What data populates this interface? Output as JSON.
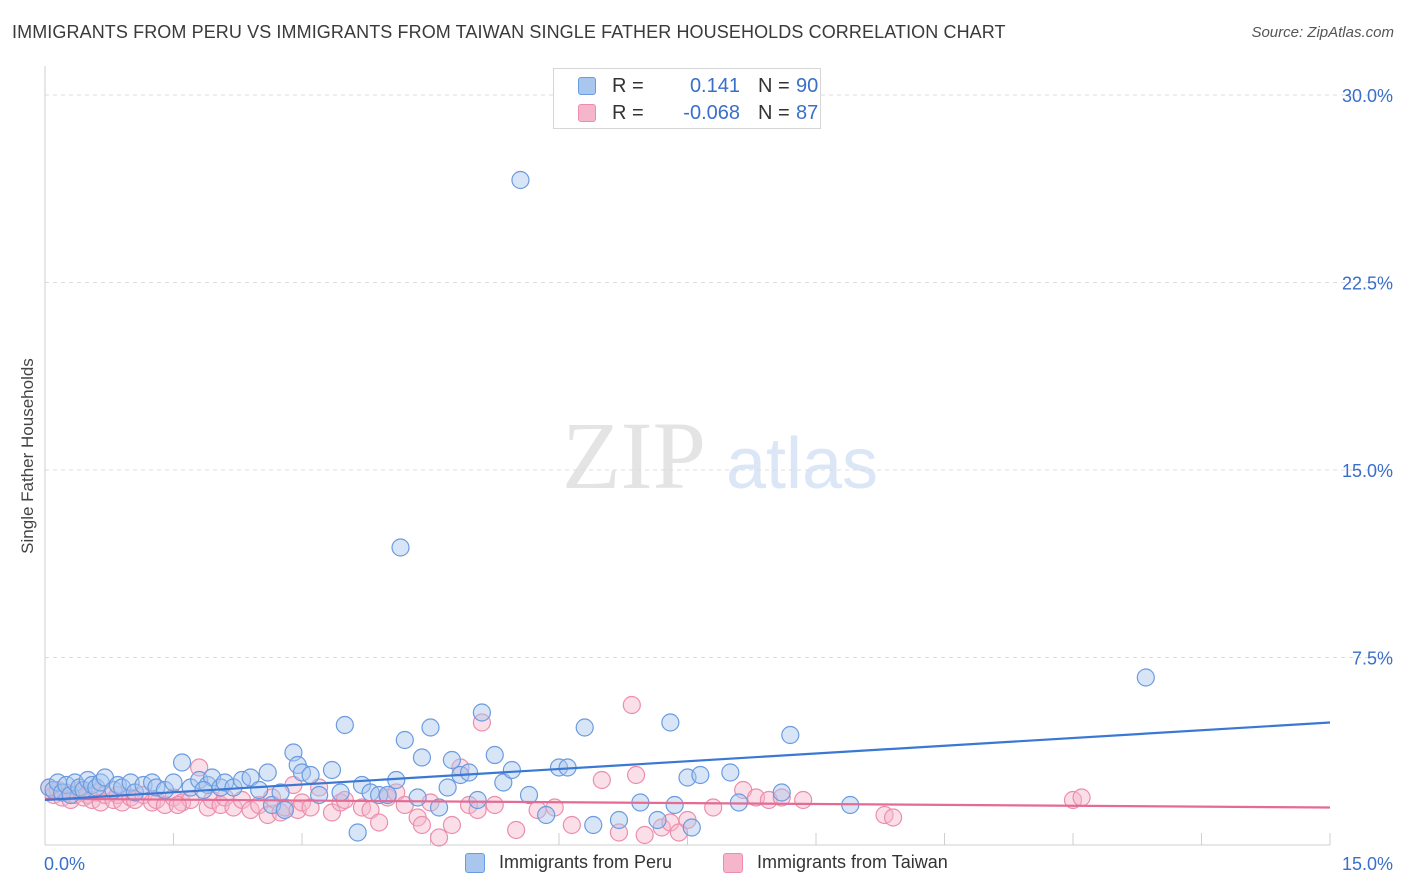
{
  "title": "IMMIGRANTS FROM PERU VS IMMIGRANTS FROM TAIWAN SINGLE FATHER HOUSEHOLDS CORRELATION CHART",
  "source": "Source: ZipAtlas.com",
  "watermark": {
    "zip": "ZIP",
    "atlas": "atlas"
  },
  "legend": {
    "peru": {
      "r_label": "R =",
      "r_value": "0.141",
      "n_label": "N =",
      "n_value": "90"
    },
    "taiwan": {
      "r_label": "R =",
      "r_value": "-0.068",
      "n_label": "N =",
      "n_value": "87"
    }
  },
  "colors": {
    "peru_fill": "#a9c6ee",
    "peru_stroke": "#6a9be0",
    "peru_line": "#3a78d4",
    "taiwan_fill": "#f5b6cb",
    "taiwan_stroke": "#ec8eab",
    "taiwan_line": "#e36b94",
    "grid": "#dcdcdc",
    "axis_label": "#3a6fc9"
  },
  "chart_data": {
    "type": "scatter",
    "title": "IMMIGRANTS FROM PERU VS IMMIGRANTS FROM TAIWAN SINGLE FATHER HOUSEHOLDS CORRELATION CHART",
    "xlabel": "",
    "ylabel": "Single Father Households",
    "xlim": [
      0,
      15
    ],
    "ylim": [
      0,
      31
    ],
    "x_tick_labels": [
      "0.0%",
      "15.0%"
    ],
    "y_ticks": [
      7.5,
      15.0,
      22.5,
      30.0
    ],
    "y_tick_labels": [
      "7.5%",
      "15.0%",
      "22.5%",
      "30.0%"
    ],
    "grid": "horizontal dashed",
    "legend_position": "top-center",
    "series": [
      {
        "name": "Immigrants from Peru",
        "trend": {
          "x": [
            0,
            15
          ],
          "y": [
            1.8,
            4.9
          ]
        },
        "points": [
          [
            0.05,
            2.3
          ],
          [
            0.1,
            2.2
          ],
          [
            0.15,
            2.5
          ],
          [
            0.2,
            2.1
          ],
          [
            0.25,
            2.4
          ],
          [
            0.3,
            2.0
          ],
          [
            0.35,
            2.5
          ],
          [
            0.4,
            2.3
          ],
          [
            0.45,
            2.2
          ],
          [
            0.5,
            2.6
          ],
          [
            0.55,
            2.4
          ],
          [
            0.6,
            2.3
          ],
          [
            0.65,
            2.5
          ],
          [
            0.7,
            2.7
          ],
          [
            0.8,
            2.2
          ],
          [
            0.85,
            2.4
          ],
          [
            0.9,
            2.3
          ],
          [
            1.0,
            2.5
          ],
          [
            1.05,
            2.1
          ],
          [
            1.15,
            2.4
          ],
          [
            1.25,
            2.5
          ],
          [
            1.3,
            2.3
          ],
          [
            1.4,
            2.2
          ],
          [
            1.5,
            2.5
          ],
          [
            1.6,
            3.3
          ],
          [
            1.7,
            2.3
          ],
          [
            1.8,
            2.6
          ],
          [
            1.9,
            2.4
          ],
          [
            1.95,
            2.7
          ],
          [
            2.05,
            2.3
          ],
          [
            2.1,
            2.5
          ],
          [
            2.2,
            2.3
          ],
          [
            2.3,
            2.6
          ],
          [
            2.4,
            2.7
          ],
          [
            2.5,
            2.2
          ],
          [
            2.6,
            2.9
          ],
          [
            2.65,
            1.6
          ],
          [
            2.75,
            2.1
          ],
          [
            2.8,
            1.4
          ],
          [
            2.9,
            3.7
          ],
          [
            2.95,
            3.2
          ],
          [
            3.0,
            2.9
          ],
          [
            3.1,
            2.8
          ],
          [
            3.2,
            2.0
          ],
          [
            3.35,
            3.0
          ],
          [
            3.45,
            2.1
          ],
          [
            3.5,
            4.8
          ],
          [
            3.7,
            2.4
          ],
          [
            3.8,
            2.1
          ],
          [
            3.9,
            2.0
          ],
          [
            4.0,
            2.0
          ],
          [
            4.1,
            2.6
          ],
          [
            4.15,
            11.9
          ],
          [
            4.2,
            4.2
          ],
          [
            4.35,
            1.9
          ],
          [
            4.4,
            3.5
          ],
          [
            4.5,
            4.7
          ],
          [
            4.6,
            1.5
          ],
          [
            4.7,
            2.3
          ],
          [
            4.75,
            3.4
          ],
          [
            4.85,
            2.8
          ],
          [
            4.95,
            2.9
          ],
          [
            5.05,
            1.8
          ],
          [
            5.1,
            5.3
          ],
          [
            5.25,
            3.6
          ],
          [
            5.35,
            2.5
          ],
          [
            5.45,
            3.0
          ],
          [
            5.55,
            26.6
          ],
          [
            5.65,
            2.0
          ],
          [
            5.85,
            1.2
          ],
          [
            6.0,
            3.1
          ],
          [
            6.1,
            3.1
          ],
          [
            6.3,
            4.7
          ],
          [
            6.4,
            0.8
          ],
          [
            6.7,
            1.0
          ],
          [
            6.95,
            1.7
          ],
          [
            7.15,
            1.0
          ],
          [
            7.3,
            4.9
          ],
          [
            7.35,
            1.6
          ],
          [
            7.5,
            2.7
          ],
          [
            7.55,
            0.7
          ],
          [
            7.65,
            2.8
          ],
          [
            8.0,
            2.9
          ],
          [
            8.1,
            1.7
          ],
          [
            8.6,
            2.1
          ],
          [
            8.7,
            4.4
          ],
          [
            9.4,
            1.6
          ],
          [
            12.85,
            6.7
          ],
          [
            3.65,
            0.5
          ],
          [
            1.85,
            2.2
          ]
        ]
      },
      {
        "name": "Immigrants from Taiwan",
        "trend": {
          "x": [
            0,
            15
          ],
          "y": [
            1.85,
            1.5
          ]
        },
        "points": [
          [
            0.05,
            2.3
          ],
          [
            0.1,
            2.0
          ],
          [
            0.15,
            2.2
          ],
          [
            0.2,
            1.9
          ],
          [
            0.25,
            2.1
          ],
          [
            0.3,
            1.8
          ],
          [
            0.35,
            2.0
          ],
          [
            0.4,
            2.2
          ],
          [
            0.45,
            1.9
          ],
          [
            0.5,
            2.0
          ],
          [
            0.55,
            1.8
          ],
          [
            0.6,
            2.1
          ],
          [
            0.65,
            1.7
          ],
          [
            0.7,
            2.0
          ],
          [
            0.8,
            1.8
          ],
          [
            0.85,
            2.0
          ],
          [
            0.9,
            1.7
          ],
          [
            1.0,
            1.9
          ],
          [
            1.05,
            1.8
          ],
          [
            1.15,
            2.0
          ],
          [
            1.25,
            1.7
          ],
          [
            1.3,
            1.8
          ],
          [
            1.4,
            1.6
          ],
          [
            1.5,
            1.9
          ],
          [
            1.6,
            1.7
          ],
          [
            1.7,
            1.8
          ],
          [
            1.8,
            3.1
          ],
          [
            1.9,
            1.5
          ],
          [
            1.95,
            1.8
          ],
          [
            2.05,
            1.6
          ],
          [
            2.1,
            1.9
          ],
          [
            2.2,
            1.5
          ],
          [
            2.3,
            1.8
          ],
          [
            2.4,
            1.4
          ],
          [
            2.5,
            1.6
          ],
          [
            2.6,
            1.2
          ],
          [
            2.65,
            1.9
          ],
          [
            2.75,
            1.3
          ],
          [
            2.8,
            1.5
          ],
          [
            2.9,
            2.4
          ],
          [
            2.95,
            1.4
          ],
          [
            3.0,
            1.7
          ],
          [
            3.1,
            1.5
          ],
          [
            3.2,
            2.3
          ],
          [
            3.35,
            1.3
          ],
          [
            3.45,
            1.7
          ],
          [
            3.5,
            1.8
          ],
          [
            3.7,
            1.5
          ],
          [
            3.8,
            1.4
          ],
          [
            3.9,
            0.9
          ],
          [
            4.0,
            1.9
          ],
          [
            4.1,
            2.1
          ],
          [
            4.2,
            1.6
          ],
          [
            4.35,
            1.1
          ],
          [
            4.4,
            0.8
          ],
          [
            4.5,
            1.7
          ],
          [
            4.6,
            0.3
          ],
          [
            4.75,
            0.8
          ],
          [
            4.85,
            3.1
          ],
          [
            4.95,
            1.6
          ],
          [
            5.05,
            1.4
          ],
          [
            5.1,
            4.9
          ],
          [
            5.25,
            1.6
          ],
          [
            5.5,
            0.6
          ],
          [
            5.75,
            1.4
          ],
          [
            5.95,
            1.5
          ],
          [
            6.15,
            0.8
          ],
          [
            6.5,
            2.6
          ],
          [
            6.85,
            5.6
          ],
          [
            6.9,
            2.8
          ],
          [
            7.0,
            0.4
          ],
          [
            7.2,
            0.7
          ],
          [
            7.3,
            0.9
          ],
          [
            7.4,
            0.5
          ],
          [
            7.5,
            1.0
          ],
          [
            7.8,
            1.5
          ],
          [
            8.15,
            2.2
          ],
          [
            8.3,
            1.9
          ],
          [
            8.45,
            1.8
          ],
          [
            8.6,
            1.9
          ],
          [
            8.85,
            1.8
          ],
          [
            9.8,
            1.2
          ],
          [
            9.9,
            1.1
          ],
          [
            12.0,
            1.8
          ],
          [
            12.1,
            1.9
          ],
          [
            1.55,
            1.6
          ],
          [
            6.7,
            0.5
          ]
        ]
      }
    ]
  },
  "bottom_legend": {
    "peru": "Immigrants from Peru",
    "taiwan": "Immigrants from Taiwan"
  }
}
